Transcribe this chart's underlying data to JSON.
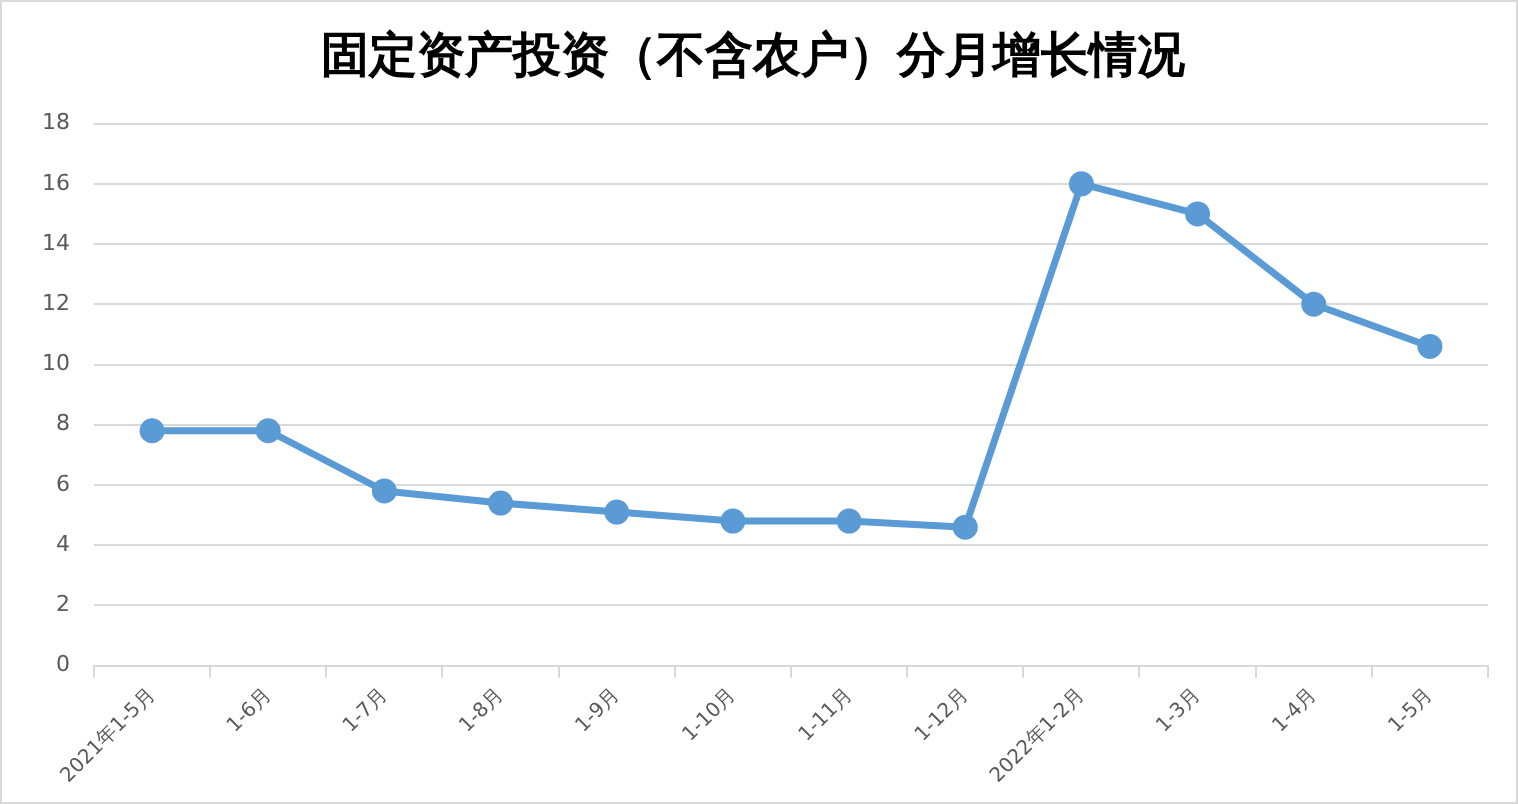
{
  "chart_data": {
    "type": "line",
    "title": "固定资产投资（不含农户）分月增长情况",
    "categories": [
      "2021年1-5月",
      "1-6月",
      "1-7月",
      "1-8月",
      "1-9月",
      "1-10月",
      "1-11月",
      "1-12月",
      "2022年1-2月",
      "1-3月",
      "1-4月",
      "1-5月"
    ],
    "series": [
      {
        "color": "#5b9bd5",
        "values": [
          7.8,
          7.8,
          5.8,
          5.4,
          5.1,
          4.8,
          4.8,
          4.6,
          16.0,
          15.0,
          12.0,
          10.6
        ]
      }
    ],
    "ylim": [
      0,
      18
    ],
    "yticks": [
      0,
      2,
      4,
      6,
      8,
      10,
      12,
      14,
      16,
      18
    ],
    "grid": "y",
    "legend": false,
    "marker": "circle",
    "line_style": "solid"
  }
}
